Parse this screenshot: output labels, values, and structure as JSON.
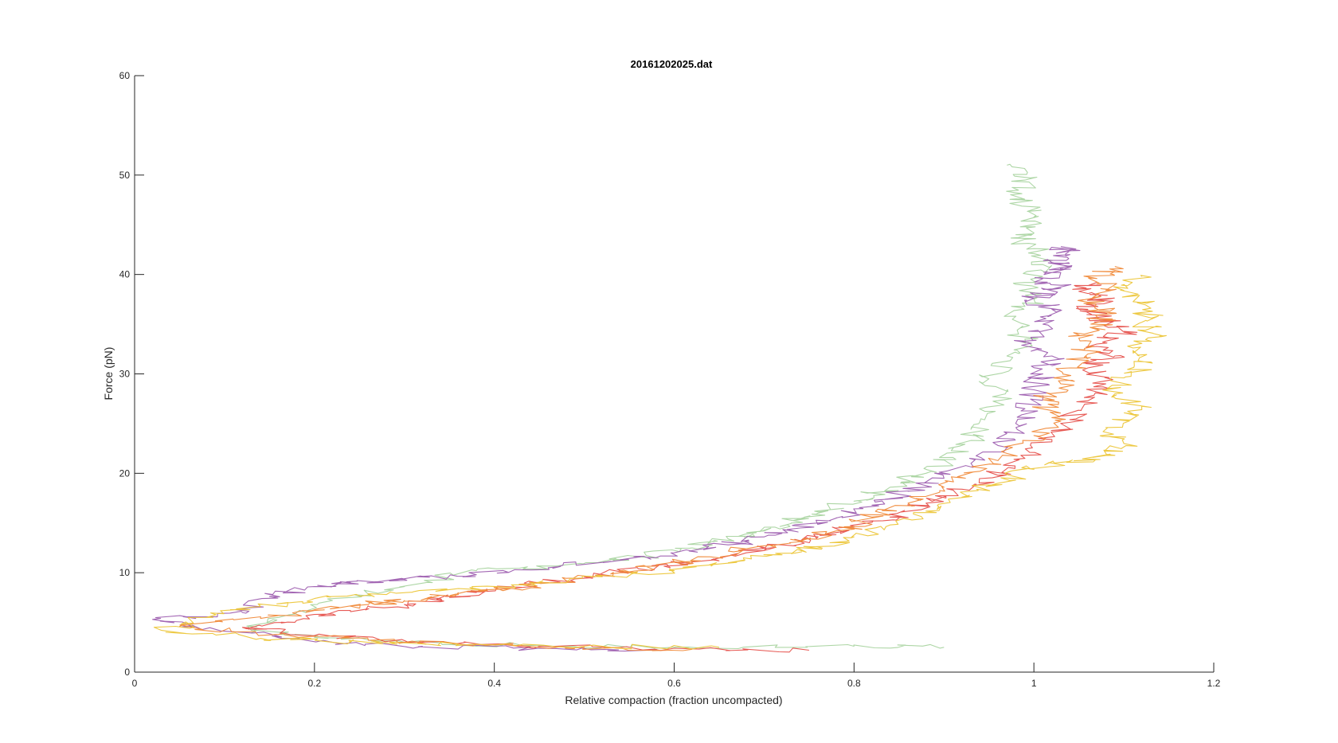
{
  "chart_data": {
    "type": "line",
    "title": "20161202025.dat",
    "xlabel": "Relative compaction (fraction uncompacted)",
    "ylabel": "Force (pN)",
    "xlim": [
      0,
      1.2
    ],
    "ylim": [
      0,
      60
    ],
    "xticks": [
      "0",
      "0.2",
      "0.4",
      "0.6",
      "0.8",
      "1",
      "1.2"
    ],
    "yticks": [
      "0",
      "10",
      "20",
      "30",
      "40",
      "50",
      "60"
    ],
    "grid": false,
    "legend": "none",
    "series": [
      {
        "color": "#a9d4a0",
        "x": [
          0.9,
          0.8,
          0.6,
          0.45,
          0.3,
          0.2,
          0.13,
          0.16,
          0.22,
          0.3,
          0.38,
          0.48,
          0.56,
          0.62,
          0.66,
          0.7,
          0.73,
          0.76,
          0.8,
          0.84,
          0.88,
          0.91,
          0.93,
          0.94,
          0.96,
          0.95,
          0.97,
          0.99,
          0.98,
          1.0,
          0.99,
          1.01,
          1.0,
          0.98,
          1.0,
          0.98,
          0.99,
          0.97
        ],
        "y": [
          2.5,
          2.6,
          2.5,
          2.7,
          3.0,
          3.5,
          4.2,
          5.5,
          7.2,
          8.6,
          10.2,
          10.8,
          11.6,
          12.5,
          13.4,
          14.2,
          15.0,
          16.0,
          17.2,
          18.6,
          20.0,
          21.6,
          23.3,
          25.2,
          27.3,
          29.5,
          31.8,
          33.5,
          35.8,
          37.5,
          39.2,
          41.0,
          42.6,
          44.0,
          45.8,
          47.6,
          49.5,
          51.0
        ]
      },
      {
        "color": "#9e5fb0",
        "x": [
          0.58,
          0.45,
          0.32,
          0.22,
          0.12,
          0.02,
          0.12,
          0.15,
          0.2,
          0.24,
          0.3,
          0.38,
          0.46,
          0.54,
          0.6,
          0.66,
          0.7,
          0.74,
          0.78,
          0.82,
          0.86,
          0.9,
          0.93,
          0.96,
          0.98,
          0.99,
          1.0,
          1.01,
          1.02,
          0.99,
          1.01,
          1.02,
          1.0,
          1.03,
          1.01,
          1.03,
          1.02,
          1.04,
          1.03
        ],
        "y": [
          2.3,
          2.4,
          2.6,
          3.0,
          4.0,
          5.3,
          6.0,
          7.6,
          8.6,
          9.0,
          9.4,
          9.8,
          10.5,
          11.3,
          12.0,
          12.8,
          13.6,
          14.5,
          15.5,
          16.8,
          18.2,
          19.5,
          21.0,
          22.8,
          24.6,
          26.5,
          28.4,
          30.0,
          31.8,
          33.3,
          35.0,
          36.5,
          37.6,
          38.6,
          39.6,
          40.5,
          41.2,
          42.0,
          42.8
        ]
      },
      {
        "color": "#e6514c",
        "x": [
          0.75,
          0.6,
          0.45,
          0.32,
          0.22,
          0.12,
          0.18,
          0.24,
          0.3,
          0.34,
          0.38,
          0.44,
          0.5,
          0.56,
          0.62,
          0.68,
          0.72,
          0.76,
          0.8,
          0.84,
          0.88,
          0.92,
          0.96,
          0.99,
          1.02,
          1.04,
          1.06,
          1.08,
          1.06,
          1.09,
          1.07,
          1.1,
          1.08,
          1.06,
          1.08,
          1.05,
          1.07
        ],
        "y": [
          2.2,
          2.4,
          2.6,
          3.0,
          3.6,
          4.5,
          5.2,
          6.2,
          6.8,
          7.4,
          8.0,
          8.8,
          9.6,
          10.4,
          11.0,
          12.0,
          12.8,
          13.6,
          14.6,
          15.6,
          17.0,
          18.4,
          19.8,
          21.5,
          23.4,
          25.4,
          27.3,
          29.0,
          30.6,
          31.8,
          33.0,
          34.2,
          35.4,
          36.5,
          37.5,
          38.3,
          39.2
        ]
      },
      {
        "color": "#f08a3a",
        "x": [
          0.62,
          0.5,
          0.38,
          0.26,
          0.16,
          0.05,
          0.14,
          0.2,
          0.26,
          0.3,
          0.36,
          0.42,
          0.48,
          0.54,
          0.58,
          0.64,
          0.68,
          0.74,
          0.78,
          0.82,
          0.86,
          0.9,
          0.94,
          0.97,
          1.0,
          1.02,
          1.01,
          1.03,
          1.04,
          1.06,
          1.05,
          1.07,
          1.08,
          1.06,
          1.08,
          1.07,
          1.09
        ],
        "y": [
          2.3,
          2.5,
          2.8,
          3.2,
          3.8,
          4.6,
          5.4,
          6.2,
          6.8,
          7.2,
          7.8,
          8.4,
          9.2,
          10.0,
          10.8,
          11.6,
          12.4,
          13.2,
          14.2,
          15.6,
          17.0,
          18.6,
          20.2,
          22.0,
          23.8,
          25.6,
          27.4,
          29.0,
          30.6,
          32.0,
          33.6,
          34.8,
          36.0,
          37.2,
          38.4,
          39.6,
          40.8
        ]
      },
      {
        "color": "#ecc63a",
        "x": [
          0.65,
          0.5,
          0.36,
          0.24,
          0.14,
          0.03,
          0.08,
          0.14,
          0.2,
          0.28,
          0.36,
          0.44,
          0.52,
          0.6,
          0.66,
          0.72,
          0.76,
          0.8,
          0.84,
          0.88,
          0.92,
          0.96,
          1.0,
          1.04,
          1.08,
          1.1,
          1.08,
          1.12,
          1.09,
          1.1,
          1.13,
          1.11,
          1.14,
          1.12,
          1.13,
          1.1,
          1.12
        ],
        "y": [
          2.5,
          2.6,
          2.8,
          3.0,
          3.4,
          4.2,
          5.5,
          6.6,
          7.4,
          7.8,
          8.4,
          9.0,
          9.6,
          10.2,
          11.0,
          11.8,
          12.6,
          13.6,
          14.8,
          16.2,
          17.6,
          19.0,
          20.4,
          21.2,
          21.8,
          23.0,
          24.6,
          26.4,
          28.0,
          29.6,
          31.2,
          32.6,
          33.8,
          35.2,
          36.6,
          38.4,
          39.8
        ]
      }
    ]
  }
}
